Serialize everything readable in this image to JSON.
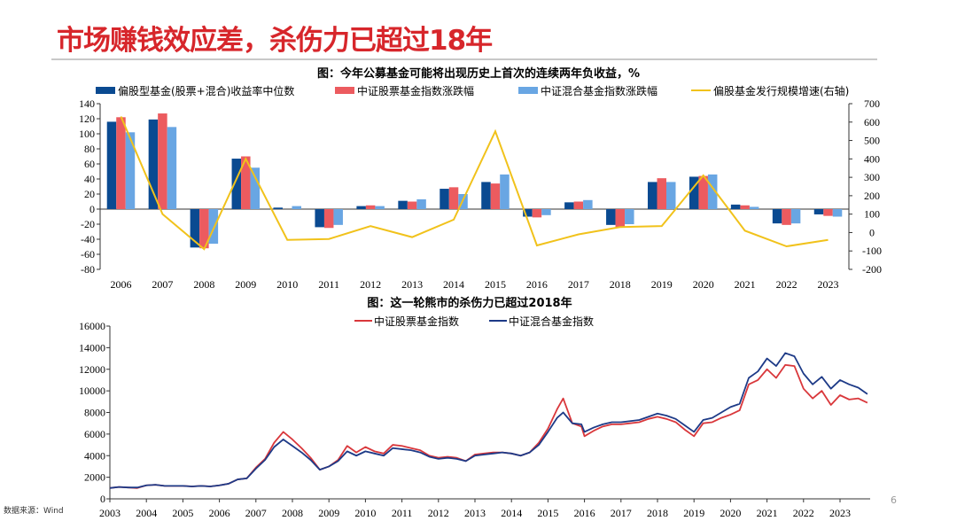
{
  "page": {
    "title": "市场赚钱效应差，杀伤力已超过18年",
    "source": "数据来源：Wind",
    "page_number": "6"
  },
  "colors": {
    "title": "#d7262b",
    "navy": "#0a4a91",
    "red": "#ec5b5f",
    "lightblue": "#69a6e3",
    "yellow": "#f1c21b",
    "stock_line": "#d9373b",
    "mixed_line": "#1d3a87"
  },
  "chart_data": [
    {
      "type": "bar",
      "title": "图：今年公募基金可能将出现历史上首次的连续两年负收益，%",
      "categories": [
        "2006",
        "2007",
        "2008",
        "2009",
        "2010",
        "2011",
        "2012",
        "2013",
        "2014",
        "2015",
        "2016",
        "2017",
        "2018",
        "2019",
        "2020",
        "2021",
        "2022",
        "2023"
      ],
      "ylim": [
        -80,
        140
      ],
      "yticks": [
        -80,
        -60,
        -40,
        -20,
        0,
        20,
        40,
        60,
        80,
        100,
        120,
        140
      ],
      "y2lim": [
        -200,
        700
      ],
      "y2ticks": [
        -200,
        -100,
        0,
        100,
        200,
        300,
        400,
        500,
        600,
        700
      ],
      "legend": "top",
      "series": [
        {
          "name": "偏股型基金(股票+混合)收益率中位数",
          "kind": "bar",
          "color": "#0a4a91",
          "values": [
            116,
            119,
            -51,
            67,
            2,
            -24,
            4,
            11,
            27,
            36,
            -10,
            9,
            -21,
            36,
            43,
            6,
            -19,
            -7
          ]
        },
        {
          "name": "中证股票基金指数涨跌幅",
          "kind": "bar",
          "color": "#ec5b5f",
          "values": [
            122,
            127,
            -52,
            70,
            0,
            -25,
            5,
            10,
            29,
            34,
            -11,
            10,
            -24,
            41,
            44,
            5,
            -21,
            -9
          ]
        },
        {
          "name": "中证混合基金指数涨跌幅",
          "kind": "bar",
          "color": "#69a6e3",
          "values": [
            102,
            109,
            -46,
            55,
            4,
            -21,
            4,
            13,
            20,
            46,
            -8,
            12,
            -20,
            36,
            46,
            3,
            -19,
            -10
          ]
        },
        {
          "name": "偏股基金发行规模增速(右轴)",
          "kind": "line",
          "axis": "right",
          "color": "#f1c21b",
          "values": [
            630,
            100,
            -90,
            400,
            -40,
            -35,
            35,
            -25,
            70,
            550,
            -70,
            -10,
            30,
            35,
            310,
            10,
            -75,
            -40
          ]
        }
      ]
    },
    {
      "type": "line",
      "title": "图：这一轮熊市的杀伤力已超过2018年",
      "xticks": [
        "2003",
        "2004",
        "2005",
        "2006",
        "2007",
        "2008",
        "2009",
        "2010",
        "2011",
        "2012",
        "2013",
        "2014",
        "2015",
        "2016",
        "2017",
        "2018",
        "2019",
        "2020",
        "2021",
        "2022",
        "2023"
      ],
      "xrange": [
        "2003-01",
        "2023-10"
      ],
      "ylim": [
        0,
        16000
      ],
      "yticks": [
        0,
        2000,
        4000,
        6000,
        8000,
        10000,
        12000,
        14000,
        16000
      ],
      "legend": "top",
      "x": [
        "2003-01",
        "2003-04",
        "2003-07",
        "2003-10",
        "2004-01",
        "2004-04",
        "2004-07",
        "2004-10",
        "2005-01",
        "2005-04",
        "2005-07",
        "2005-10",
        "2006-01",
        "2006-04",
        "2006-07",
        "2006-10",
        "2007-01",
        "2007-04",
        "2007-07",
        "2007-10",
        "2008-01",
        "2008-04",
        "2008-07",
        "2008-10",
        "2009-01",
        "2009-04",
        "2009-07",
        "2009-10",
        "2010-01",
        "2010-04",
        "2010-07",
        "2010-10",
        "2011-01",
        "2011-04",
        "2011-07",
        "2011-10",
        "2012-01",
        "2012-04",
        "2012-07",
        "2012-10",
        "2013-01",
        "2013-04",
        "2013-07",
        "2013-10",
        "2014-01",
        "2014-04",
        "2014-07",
        "2014-10",
        "2015-01",
        "2015-04",
        "2015-06",
        "2015-09",
        "2015-12",
        "2016-01",
        "2016-04",
        "2016-07",
        "2016-10",
        "2017-01",
        "2017-04",
        "2017-07",
        "2017-10",
        "2018-01",
        "2018-04",
        "2018-07",
        "2018-10",
        "2019-01",
        "2019-04",
        "2019-07",
        "2019-10",
        "2020-01",
        "2020-04",
        "2020-07",
        "2020-10",
        "2021-01",
        "2021-04",
        "2021-07",
        "2021-10",
        "2022-01",
        "2022-04",
        "2022-07",
        "2022-10",
        "2023-01",
        "2023-04",
        "2023-07",
        "2023-10"
      ],
      "series": [
        {
          "name": "中证股票基金指数",
          "color": "#d9373b",
          "values": [
            1000,
            1100,
            1050,
            1000,
            1250,
            1300,
            1200,
            1200,
            1200,
            1150,
            1200,
            1150,
            1250,
            1400,
            1800,
            1900,
            2900,
            3700,
            5200,
            6200,
            5500,
            4700,
            3800,
            2700,
            3000,
            3600,
            4900,
            4300,
            4800,
            4400,
            4200,
            5000,
            4900,
            4700,
            4500,
            4000,
            3800,
            3900,
            3800,
            3500,
            4100,
            4200,
            4300,
            4300,
            4200,
            4000,
            4300,
            5200,
            6500,
            8300,
            9300,
            7000,
            6700,
            5800,
            6300,
            6700,
            6900,
            6900,
            7000,
            7100,
            7400,
            7600,
            7400,
            7100,
            6400,
            5800,
            7000,
            7100,
            7500,
            7800,
            8200,
            10600,
            11000,
            12000,
            11200,
            12400,
            12300,
            10200,
            9300,
            10000,
            8700,
            9600,
            9200,
            9300,
            8900
          ]
        },
        {
          "name": "中证混合基金指数",
          "color": "#1d3a87",
          "values": [
            1000,
            1100,
            1050,
            1050,
            1250,
            1300,
            1200,
            1200,
            1200,
            1150,
            1200,
            1150,
            1250,
            1400,
            1800,
            1900,
            2800,
            3600,
            4800,
            5500,
            4900,
            4300,
            3600,
            2700,
            3000,
            3500,
            4400,
            4000,
            4400,
            4200,
            4000,
            4700,
            4600,
            4500,
            4300,
            3900,
            3700,
            3800,
            3700,
            3500,
            4000,
            4100,
            4200,
            4300,
            4200,
            4000,
            4300,
            5000,
            6200,
            7500,
            8000,
            7000,
            6900,
            6200,
            6600,
            6900,
            7100,
            7100,
            7200,
            7300,
            7600,
            7900,
            7700,
            7400,
            6800,
            6200,
            7300,
            7500,
            8000,
            8500,
            8800,
            11200,
            11800,
            13000,
            12300,
            13500,
            13200,
            11600,
            10600,
            11300,
            10200,
            11000,
            10600,
            10300,
            9700
          ]
        }
      ]
    }
  ]
}
